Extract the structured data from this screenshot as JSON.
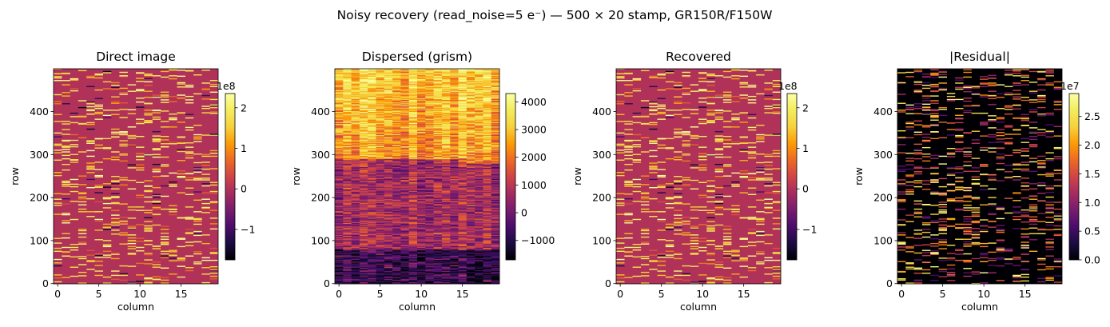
{
  "figure": {
    "suptitle": "Noisy recovery (read_noise=5 e⁻) — 500 × 20 stamp, GR150R/F150W"
  },
  "chart_data": [
    {
      "type": "heatmap",
      "title": "Direct image",
      "xlabel": "column",
      "ylabel": "row",
      "x_ticks": [
        "0",
        "5",
        "10",
        "15"
      ],
      "y_ticks": [
        "0",
        "100",
        "200",
        "300",
        "400"
      ],
      "xlim": [
        -0.5,
        19.5
      ],
      "ylim": [
        -0.5,
        499.5
      ],
      "grid": false,
      "colormap": "inferno",
      "colorbar": {
        "ticks": [
          "−1",
          "0",
          "1",
          "2"
        ],
        "tick_values": [
          -1,
          0,
          1,
          2
        ],
        "range": [
          -1.75,
          2.35
        ],
        "offset_text": "1e8"
      },
      "background_value": 0,
      "pattern": "sparse bright single-pixel-tall horizontal streaks on flat background"
    },
    {
      "type": "heatmap",
      "title": "Dispersed (grism)",
      "xlabel": "column",
      "ylabel": "row",
      "x_ticks": [
        "0",
        "5",
        "10",
        "15"
      ],
      "y_ticks": [
        "0",
        "100",
        "200",
        "300",
        "400"
      ],
      "xlim": [
        -0.5,
        19.5
      ],
      "ylim": [
        -0.5,
        499.5
      ],
      "grid": false,
      "colormap": "inferno",
      "colorbar": {
        "ticks": [
          "−1000",
          "0",
          "1000",
          "2000",
          "3000",
          "4000"
        ],
        "tick_values": [
          -1000,
          0,
          1000,
          2000,
          3000,
          4000
        ],
        "range": [
          -1700,
          4300
        ],
        "offset_text": ""
      },
      "pattern": "bright upper half (rows ~290-500), moderate band rows ~80-280, dark lower rows"
    },
    {
      "type": "heatmap",
      "title": "Recovered",
      "xlabel": "column",
      "ylabel": "row",
      "x_ticks": [
        "0",
        "5",
        "10",
        "15"
      ],
      "y_ticks": [
        "0",
        "100",
        "200",
        "300",
        "400"
      ],
      "xlim": [
        -0.5,
        19.5
      ],
      "ylim": [
        -0.5,
        499.5
      ],
      "grid": false,
      "colormap": "inferno",
      "colorbar": {
        "ticks": [
          "−1",
          "0",
          "1",
          "2"
        ],
        "tick_values": [
          -1,
          0,
          1,
          2
        ],
        "range": [
          -1.75,
          2.35
        ],
        "offset_text": "1e8"
      },
      "background_value": 0,
      "pattern": "sparse bright single-pixel-tall horizontal streaks on flat background"
    },
    {
      "type": "heatmap",
      "title": "|Residual|",
      "xlabel": "column",
      "ylabel": "row",
      "x_ticks": [
        "0",
        "5",
        "10",
        "15"
      ],
      "y_ticks": [
        "0",
        "100",
        "200",
        "300",
        "400"
      ],
      "xlim": [
        -0.5,
        19.5
      ],
      "ylim": [
        -0.5,
        499.5
      ],
      "grid": false,
      "colormap": "inferno",
      "colorbar": {
        "ticks": [
          "0.0",
          "0.5",
          "1.0",
          "1.5",
          "2.0",
          "2.5"
        ],
        "tick_values": [
          0,
          0.5,
          1.0,
          1.5,
          2.0,
          2.5
        ],
        "range": [
          0,
          2.9
        ],
        "offset_text": "1e7"
      },
      "background_value": 0,
      "pattern": "sparse bright streaks on black background"
    }
  ]
}
